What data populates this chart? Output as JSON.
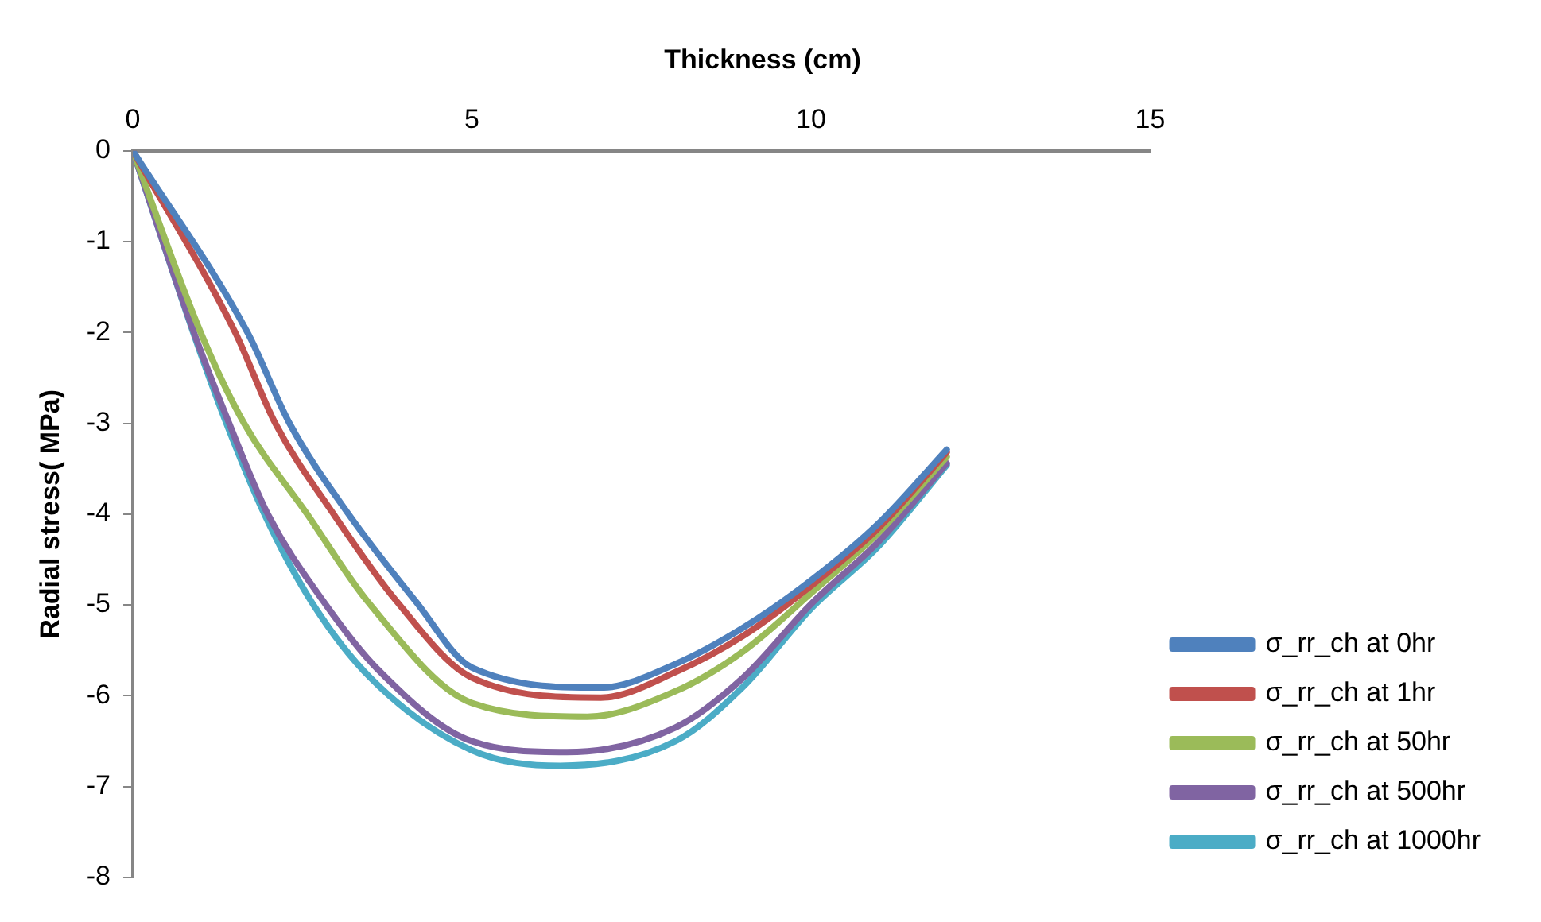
{
  "chart_data": {
    "type": "line",
    "xlabel": "Thickness (cm)",
    "ylabel": "Radial stress( MPa)",
    "xlim": [
      0,
      15
    ],
    "xticks": [
      0,
      5,
      10,
      15
    ],
    "ylim": [
      -8,
      0
    ],
    "yticks": [
      -8,
      -7,
      -6,
      -5,
      -4,
      -3,
      -2,
      -1,
      0
    ],
    "grid": false,
    "legend": "right",
    "marker": "none",
    "line_style": "solid",
    "series": [
      {
        "name": "σ_rr_ch at 0hr",
        "color": "#4f81bd",
        "x": [
          0,
          1.69,
          2.31,
          3.18,
          4.17,
          5,
          6.9,
          8,
          9,
          10,
          11,
          12
        ],
        "values": [
          0,
          -2,
          -3,
          -4,
          -4.96,
          -5.69,
          -5.91,
          -5.65,
          -5.25,
          -4.73,
          -4.1,
          -3.29
        ]
      },
      {
        "name": "σ_rr_ch at 1hr",
        "color": "#c0504d",
        "x": [
          0,
          1.51,
          2.1,
          2.96,
          3.89,
          5,
          6.9,
          8,
          9,
          10,
          11,
          12
        ],
        "values": [
          0,
          -2,
          -3,
          -4,
          -4.96,
          -5.8,
          -6.02,
          -5.74,
          -5.34,
          -4.79,
          -4.15,
          -3.32
        ]
      },
      {
        "name": "σ_rr_ch at 50hr",
        "color": "#9bbb59",
        "x": [
          0,
          1.0,
          1.64,
          2.57,
          3.46,
          5,
          6.7,
          8,
          9,
          10,
          11,
          12
        ],
        "values": [
          0,
          -2,
          -3,
          -4,
          -4.96,
          -6.08,
          -6.23,
          -5.95,
          -5.51,
          -4.87,
          -4.2,
          -3.37
        ]
      },
      {
        "name": "σ_rr_ch at 500hr",
        "color": "#8064a2",
        "x": [
          0,
          0.9,
          1.42,
          1.99,
          2.81,
          3.6,
          5,
          6.4,
          8,
          9,
          10,
          11,
          12
        ],
        "values": [
          0,
          -2,
          -3,
          -4,
          -4.96,
          -5.7,
          -6.5,
          -6.62,
          -6.35,
          -5.8,
          -4.99,
          -4.3,
          -3.44
        ]
      },
      {
        "name": "σ_rr_ch at 1000hr",
        "color": "#4bacc6",
        "x": [
          0,
          0.89,
          1.38,
          1.94,
          2.63,
          3.5,
          5,
          6.3,
          8,
          9,
          10,
          11,
          12
        ],
        "values": [
          0,
          -2,
          -3,
          -4,
          -4.96,
          -5.8,
          -6.6,
          -6.77,
          -6.5,
          -5.9,
          -5.04,
          -4.35,
          -3.46
        ]
      }
    ]
  }
}
